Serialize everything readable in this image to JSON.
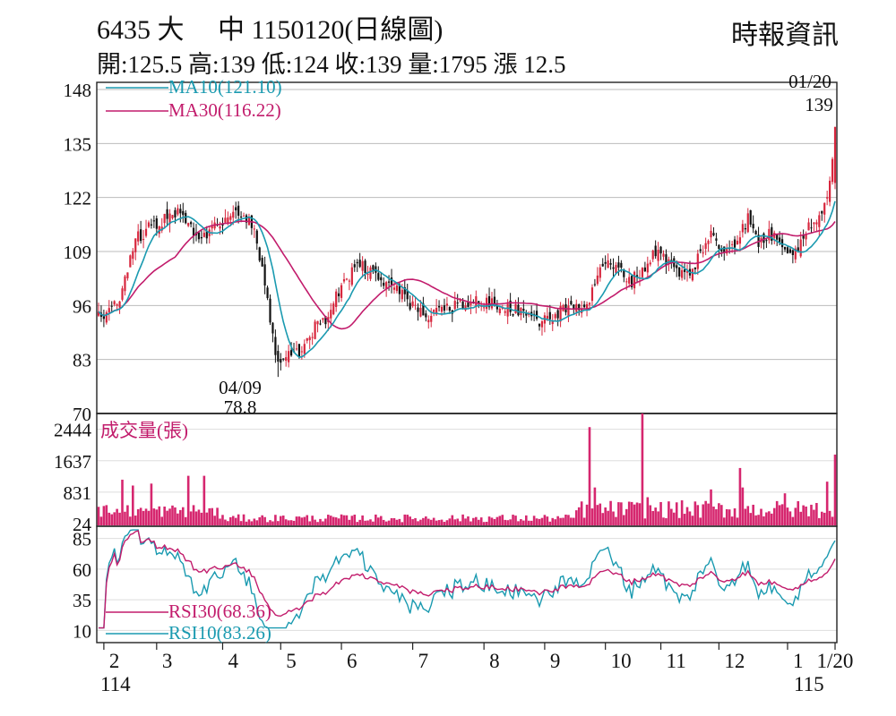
{
  "header": {
    "title": "6435 大　 中 1150120(日線圖)",
    "ohlc": "開:125.5 高:139 低:124 收:139 量:1795 漲 12.5",
    "source": "時報資訊"
  },
  "chart_data": [
    {
      "type": "candlestick",
      "panel": "price",
      "yticks": [
        148,
        135,
        122,
        109,
        96,
        83,
        70
      ],
      "ylim": [
        70,
        148
      ],
      "legend": [
        {
          "label": "MA10(121.10)",
          "color": "#1a9ab0"
        },
        {
          "label": "MA30(116.22)",
          "color": "#c21c6c"
        }
      ],
      "annotations": [
        {
          "date": "04/09",
          "value": "78.8"
        },
        {
          "date": "01/20",
          "value": "139"
        }
      ],
      "anchors": [
        {
          "x": 0,
          "y": 93
        },
        {
          "x": 8,
          "y": 98
        },
        {
          "x": 14,
          "y": 112
        },
        {
          "x": 22,
          "y": 116
        },
        {
          "x": 30,
          "y": 118
        },
        {
          "x": 38,
          "y": 112
        },
        {
          "x": 46,
          "y": 116
        },
        {
          "x": 52,
          "y": 119
        },
        {
          "x": 58,
          "y": 116
        },
        {
          "x": 62,
          "y": 105
        },
        {
          "x": 65,
          "y": 92
        },
        {
          "x": 68,
          "y": 82
        },
        {
          "x": 72,
          "y": 85
        },
        {
          "x": 76,
          "y": 84
        },
        {
          "x": 82,
          "y": 91
        },
        {
          "x": 86,
          "y": 93
        },
        {
          "x": 92,
          "y": 101
        },
        {
          "x": 98,
          "y": 106
        },
        {
          "x": 104,
          "y": 104
        },
        {
          "x": 110,
          "y": 101
        },
        {
          "x": 116,
          "y": 98
        },
        {
          "x": 122,
          "y": 94
        },
        {
          "x": 128,
          "y": 94
        },
        {
          "x": 136,
          "y": 96
        },
        {
          "x": 146,
          "y": 97
        },
        {
          "x": 156,
          "y": 95
        },
        {
          "x": 162,
          "y": 95
        },
        {
          "x": 168,
          "y": 92
        },
        {
          "x": 174,
          "y": 94
        },
        {
          "x": 180,
          "y": 96
        },
        {
          "x": 186,
          "y": 97
        },
        {
          "x": 190,
          "y": 106
        },
        {
          "x": 196,
          "y": 105
        },
        {
          "x": 202,
          "y": 102
        },
        {
          "x": 208,
          "y": 106
        },
        {
          "x": 212,
          "y": 110
        },
        {
          "x": 216,
          "y": 106
        },
        {
          "x": 220,
          "y": 104
        },
        {
          "x": 224,
          "y": 103
        },
        {
          "x": 228,
          "y": 109
        },
        {
          "x": 232,
          "y": 113
        },
        {
          "x": 236,
          "y": 109
        },
        {
          "x": 242,
          "y": 112
        },
        {
          "x": 246,
          "y": 117
        },
        {
          "x": 250,
          "y": 111
        },
        {
          "x": 254,
          "y": 113
        },
        {
          "x": 258,
          "y": 112
        },
        {
          "x": 262,
          "y": 109
        },
        {
          "x": 266,
          "y": 111
        },
        {
          "x": 270,
          "y": 116
        },
        {
          "x": 274,
          "y": 118
        },
        {
          "x": 277,
          "y": 126
        },
        {
          "x": 279,
          "y": 139
        }
      ],
      "ma10_end": 121.1,
      "ma30_end": 116.22
    },
    {
      "type": "bar",
      "panel": "volume",
      "legend": [
        {
          "label": "成交量(張)",
          "color": "#c21c6c"
        }
      ],
      "yticks": [
        2444,
        1637,
        831,
        24
      ],
      "ylim": [
        0,
        2850
      ],
      "spikes": [
        {
          "i": 9,
          "v": 1150
        },
        {
          "i": 13,
          "v": 1000
        },
        {
          "i": 20,
          "v": 1050
        },
        {
          "i": 34,
          "v": 1250
        },
        {
          "i": 40,
          "v": 1250
        },
        {
          "i": 186,
          "v": 2500
        },
        {
          "i": 188,
          "v": 950
        },
        {
          "i": 206,
          "v": 2850
        },
        {
          "i": 208,
          "v": 700
        },
        {
          "i": 232,
          "v": 900
        },
        {
          "i": 243,
          "v": 1450
        },
        {
          "i": 244,
          "v": 950
        },
        {
          "i": 260,
          "v": 800
        },
        {
          "i": 276,
          "v": 1100
        },
        {
          "i": 279,
          "v": 1795
        }
      ],
      "highs": [
        {
          "from": 0,
          "to": 45,
          "lo": 180,
          "hi": 520
        },
        {
          "from": 46,
          "to": 180,
          "lo": 60,
          "hi": 260
        },
        {
          "from": 181,
          "to": 279,
          "lo": 150,
          "hi": 620
        }
      ]
    },
    {
      "type": "line",
      "panel": "rsi",
      "yticks": [
        85,
        60,
        35,
        10
      ],
      "ylim": [
        0,
        95
      ],
      "series": [
        {
          "name": "RSI30(68.36)",
          "color": "#c21c6c"
        },
        {
          "name": "RSI10(83.26)",
          "color": "#1a9ab0"
        }
      ]
    }
  ],
  "x_axis": {
    "months": [
      "2",
      "3",
      "4",
      "5",
      "6",
      "7",
      "8",
      "9",
      "10",
      "11",
      "12",
      "1",
      "1/20"
    ],
    "month_index": [
      2,
      22,
      47,
      69,
      92,
      119,
      146,
      169,
      192,
      213,
      235,
      261,
      279
    ],
    "years": [
      "114",
      "115"
    ]
  }
}
